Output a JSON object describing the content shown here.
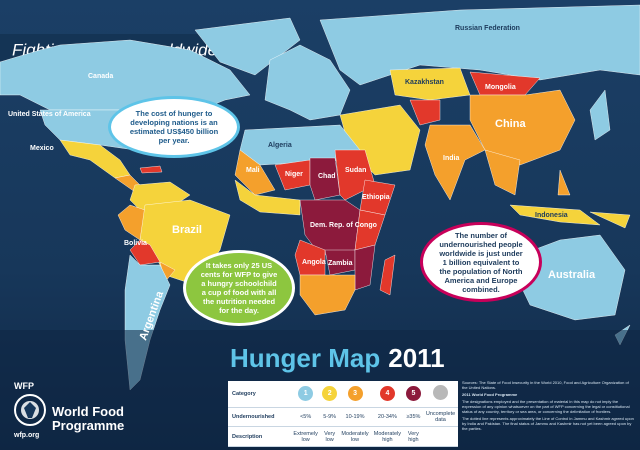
{
  "header": {
    "title": "Fighting Hunger Worldwide"
  },
  "map_title": {
    "text": "Hunger Map",
    "year": "2011"
  },
  "labels": [
    "Canada",
    "United States of America",
    "Mexico",
    "Brazil",
    "Bolivia",
    "Argentina",
    "Russian Federation",
    "Kazakhstan",
    "Mongolia",
    "China",
    "India",
    "Indonesia",
    "Australia",
    "Algeria",
    "Mali",
    "Niger",
    "Chad",
    "Sudan",
    "Ethiopia",
    "Dem. Rep. of Congo",
    "Angola",
    "Zambia"
  ],
  "callouts": [
    "The cost of hunger to developing nations is an estimated US$450 billion per year.",
    "It takes only 25 US cents for WFP to give a hungry schoolchild a cup of food with all the nutrition needed for the day.",
    "The number of undernourished people worldwide is just under 1 billion equivalent to the population of North America and Europe combined."
  ],
  "legend": {
    "row_headers": [
      "Category",
      "Undernourished",
      "Description"
    ],
    "categories": [
      "1",
      "2",
      "3",
      "4",
      "5"
    ],
    "colors": [
      "#8ecbe3",
      "#f5d33b",
      "#f4a02c",
      "#e2382b",
      "#8c1a3c",
      "#b8b8b8"
    ],
    "undernourished": [
      "<5%",
      "5-9%",
      "10-19%",
      "20-34%",
      "≥35%",
      "Uncomplete data"
    ],
    "descriptions": [
      "Extremely low",
      "Very low",
      "Moderately low",
      "Moderately high",
      "Very high"
    ]
  },
  "logo": {
    "acronym": "WFP",
    "name": "World Food Programme",
    "url": "wfp.org"
  },
  "sources": [
    "Sources: The State of Food Insecurity in the World 2010, Food and Agriculture Organization of the United Nations.",
    "2011 World Food Programme",
    "The designations employed and the presentation of material in this map do not imply the expression of any opinion whatsoever on the part of WFP concerning the legal or constitutional status of any country, territory or sea area, or concerning the delimitation of frontiers.",
    "The dotted line represents approximately the Line of Control in Jammu and Kashmir agreed upon by India and Pakistan. The final status of Jammu and Kashmir has not yet been agreed upon by the parties."
  ]
}
